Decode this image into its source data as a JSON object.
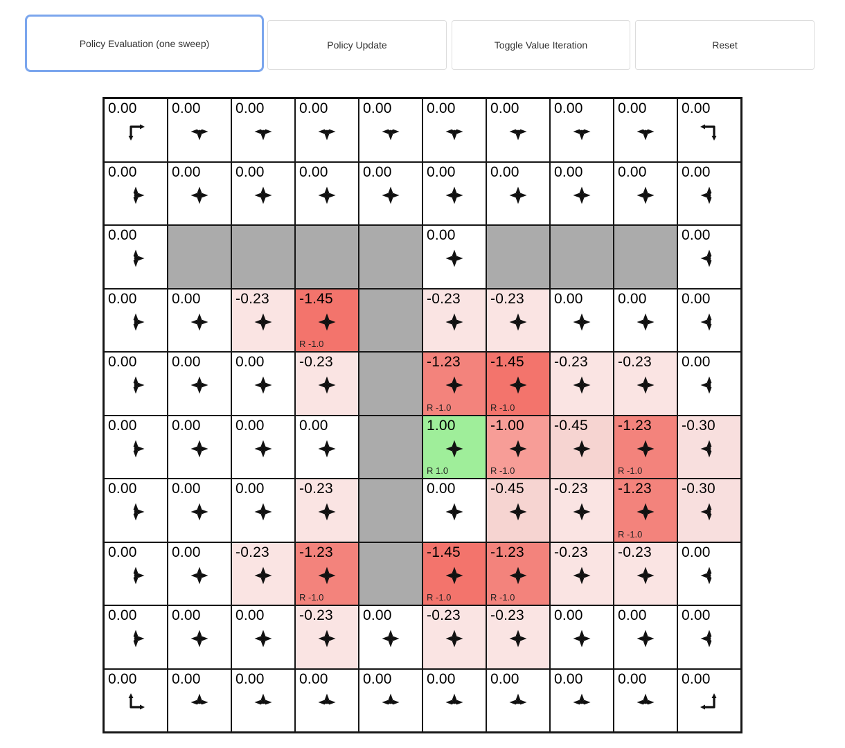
{
  "toolbar": {
    "buttons": [
      {
        "label": "Policy Evaluation (one sweep)",
        "active": true
      },
      {
        "label": "Policy Update",
        "active": false
      },
      {
        "label": "Toggle Value Iteration",
        "active": false
      },
      {
        "label": "Reset",
        "active": false
      }
    ],
    "active_border_color": "#7ba6ed"
  },
  "colors": {
    "cell_white": "#ffffff",
    "wall_gray": "#ababab",
    "green_positive": "#9fee9a",
    "red_strong": "#f3746c",
    "red_medium": "#f3837c",
    "red_light": "#f79d97",
    "pink_045": "#f6d4d1",
    "pink_030": "#f8dfde",
    "pink_023": "#fae4e3",
    "grid_line": "#161616",
    "arrow_black": "#111111"
  },
  "grid": {
    "rows": 10,
    "cols": 10,
    "cells": [
      [
        {
          "v": "0.00",
          "bg": "#ffffff",
          "g": "corner",
          "a": "dr"
        },
        {
          "v": "0.00",
          "bg": "#ffffff",
          "g": "star",
          "a": "ldr"
        },
        {
          "v": "0.00",
          "bg": "#ffffff",
          "g": "star",
          "a": "ldr"
        },
        {
          "v": "0.00",
          "bg": "#ffffff",
          "g": "star",
          "a": "ldr"
        },
        {
          "v": "0.00",
          "bg": "#ffffff",
          "g": "star",
          "a": "ldr"
        },
        {
          "v": "0.00",
          "bg": "#ffffff",
          "g": "star",
          "a": "ldr"
        },
        {
          "v": "0.00",
          "bg": "#ffffff",
          "g": "star",
          "a": "ldr"
        },
        {
          "v": "0.00",
          "bg": "#ffffff",
          "g": "star",
          "a": "ldr"
        },
        {
          "v": "0.00",
          "bg": "#ffffff",
          "g": "star",
          "a": "ldr"
        },
        {
          "v": "0.00",
          "bg": "#ffffff",
          "g": "corner",
          "a": "dl"
        }
      ],
      [
        {
          "v": "0.00",
          "bg": "#ffffff",
          "g": "star",
          "a": "udr"
        },
        {
          "v": "0.00",
          "bg": "#ffffff",
          "g": "star",
          "a": "udlr"
        },
        {
          "v": "0.00",
          "bg": "#ffffff",
          "g": "star",
          "a": "udlr"
        },
        {
          "v": "0.00",
          "bg": "#ffffff",
          "g": "star",
          "a": "udlr"
        },
        {
          "v": "0.00",
          "bg": "#ffffff",
          "g": "star",
          "a": "udlr"
        },
        {
          "v": "0.00",
          "bg": "#ffffff",
          "g": "star",
          "a": "udlr"
        },
        {
          "v": "0.00",
          "bg": "#ffffff",
          "g": "star",
          "a": "udlr"
        },
        {
          "v": "0.00",
          "bg": "#ffffff",
          "g": "star",
          "a": "udlr"
        },
        {
          "v": "0.00",
          "bg": "#ffffff",
          "g": "star",
          "a": "udlr"
        },
        {
          "v": "0.00",
          "bg": "#ffffff",
          "g": "star",
          "a": "udl"
        }
      ],
      [
        {
          "v": "0.00",
          "bg": "#ffffff",
          "g": "star",
          "a": "udr"
        },
        {
          "wall": true
        },
        {
          "wall": true
        },
        {
          "wall": true
        },
        {
          "wall": true
        },
        {
          "v": "0.00",
          "bg": "#ffffff",
          "g": "star",
          "a": "udlr"
        },
        {
          "wall": true
        },
        {
          "wall": true
        },
        {
          "wall": true
        },
        {
          "v": "0.00",
          "bg": "#ffffff",
          "g": "star",
          "a": "udl"
        }
      ],
      [
        {
          "v": "0.00",
          "bg": "#ffffff",
          "g": "star",
          "a": "udr"
        },
        {
          "v": "0.00",
          "bg": "#ffffff",
          "g": "star",
          "a": "udlr"
        },
        {
          "v": "-0.23",
          "bg": "#fae4e3",
          "g": "star",
          "a": "udlr"
        },
        {
          "v": "-1.45",
          "bg": "#f3746c",
          "g": "star",
          "a": "udlr",
          "r": "R -1.0"
        },
        {
          "wall": true
        },
        {
          "v": "-0.23",
          "bg": "#fae4e3",
          "g": "star",
          "a": "udlr"
        },
        {
          "v": "-0.23",
          "bg": "#fae4e3",
          "g": "star",
          "a": "udlr"
        },
        {
          "v": "0.00",
          "bg": "#ffffff",
          "g": "star",
          "a": "udlr"
        },
        {
          "v": "0.00",
          "bg": "#ffffff",
          "g": "star",
          "a": "udlr"
        },
        {
          "v": "0.00",
          "bg": "#ffffff",
          "g": "star",
          "a": "udl"
        }
      ],
      [
        {
          "v": "0.00",
          "bg": "#ffffff",
          "g": "star",
          "a": "udr"
        },
        {
          "v": "0.00",
          "bg": "#ffffff",
          "g": "star",
          "a": "udlr"
        },
        {
          "v": "0.00",
          "bg": "#ffffff",
          "g": "star",
          "a": "udlr"
        },
        {
          "v": "-0.23",
          "bg": "#fae4e3",
          "g": "star",
          "a": "udlr"
        },
        {
          "wall": true
        },
        {
          "v": "-1.23",
          "bg": "#f3837c",
          "g": "star",
          "a": "udlr",
          "r": "R -1.0"
        },
        {
          "v": "-1.45",
          "bg": "#f3746c",
          "g": "star",
          "a": "udlr",
          "r": "R -1.0"
        },
        {
          "v": "-0.23",
          "bg": "#fae4e3",
          "g": "star",
          "a": "udlr"
        },
        {
          "v": "-0.23",
          "bg": "#fae4e3",
          "g": "star",
          "a": "udlr"
        },
        {
          "v": "0.00",
          "bg": "#ffffff",
          "g": "star",
          "a": "udl"
        }
      ],
      [
        {
          "v": "0.00",
          "bg": "#ffffff",
          "g": "star",
          "a": "udr"
        },
        {
          "v": "0.00",
          "bg": "#ffffff",
          "g": "star",
          "a": "udlr"
        },
        {
          "v": "0.00",
          "bg": "#ffffff",
          "g": "star",
          "a": "udlr"
        },
        {
          "v": "0.00",
          "bg": "#ffffff",
          "g": "star",
          "a": "udlr"
        },
        {
          "wall": true
        },
        {
          "v": "1.00",
          "bg": "#9fee9a",
          "g": "star",
          "a": "udlr",
          "r": "R 1.0"
        },
        {
          "v": "-1.00",
          "bg": "#f79d97",
          "g": "star",
          "a": "udlr",
          "r": "R -1.0"
        },
        {
          "v": "-0.45",
          "bg": "#f6d4d1",
          "g": "star",
          "a": "udlr"
        },
        {
          "v": "-1.23",
          "bg": "#f3837c",
          "g": "star",
          "a": "udlr",
          "r": "R -1.0"
        },
        {
          "v": "-0.30",
          "bg": "#f8dfde",
          "g": "star",
          "a": "udl"
        }
      ],
      [
        {
          "v": "0.00",
          "bg": "#ffffff",
          "g": "star",
          "a": "udr"
        },
        {
          "v": "0.00",
          "bg": "#ffffff",
          "g": "star",
          "a": "udlr"
        },
        {
          "v": "0.00",
          "bg": "#ffffff",
          "g": "star",
          "a": "udlr"
        },
        {
          "v": "-0.23",
          "bg": "#fae4e3",
          "g": "star",
          "a": "udlr"
        },
        {
          "wall": true
        },
        {
          "v": "0.00",
          "bg": "#ffffff",
          "g": "star",
          "a": "udlr"
        },
        {
          "v": "-0.45",
          "bg": "#f6d4d1",
          "g": "star",
          "a": "udlr"
        },
        {
          "v": "-0.23",
          "bg": "#fae4e3",
          "g": "star",
          "a": "udlr"
        },
        {
          "v": "-1.23",
          "bg": "#f3837c",
          "g": "star",
          "a": "udlr",
          "r": "R -1.0"
        },
        {
          "v": "-0.30",
          "bg": "#f8dfde",
          "g": "star",
          "a": "udl"
        }
      ],
      [
        {
          "v": "0.00",
          "bg": "#ffffff",
          "g": "star",
          "a": "udr"
        },
        {
          "v": "0.00",
          "bg": "#ffffff",
          "g": "star",
          "a": "udlr"
        },
        {
          "v": "-0.23",
          "bg": "#fae4e3",
          "g": "star",
          "a": "udlr"
        },
        {
          "v": "-1.23",
          "bg": "#f3837c",
          "g": "star",
          "a": "udlr",
          "r": "R -1.0"
        },
        {
          "wall": true
        },
        {
          "v": "-1.45",
          "bg": "#f3746c",
          "g": "star",
          "a": "udlr",
          "r": "R -1.0"
        },
        {
          "v": "-1.23",
          "bg": "#f3837c",
          "g": "star",
          "a": "udlr",
          "r": "R -1.0"
        },
        {
          "v": "-0.23",
          "bg": "#fae4e3",
          "g": "star",
          "a": "udlr"
        },
        {
          "v": "-0.23",
          "bg": "#fae4e3",
          "g": "star",
          "a": "udlr"
        },
        {
          "v": "0.00",
          "bg": "#ffffff",
          "g": "star",
          "a": "udl"
        }
      ],
      [
        {
          "v": "0.00",
          "bg": "#ffffff",
          "g": "star",
          "a": "udr"
        },
        {
          "v": "0.00",
          "bg": "#ffffff",
          "g": "star",
          "a": "udlr"
        },
        {
          "v": "0.00",
          "bg": "#ffffff",
          "g": "star",
          "a": "udlr"
        },
        {
          "v": "-0.23",
          "bg": "#fae4e3",
          "g": "star",
          "a": "udlr"
        },
        {
          "v": "0.00",
          "bg": "#ffffff",
          "g": "star",
          "a": "udlr"
        },
        {
          "v": "-0.23",
          "bg": "#fae4e3",
          "g": "star",
          "a": "udlr"
        },
        {
          "v": "-0.23",
          "bg": "#fae4e3",
          "g": "star",
          "a": "udlr"
        },
        {
          "v": "0.00",
          "bg": "#ffffff",
          "g": "star",
          "a": "udlr"
        },
        {
          "v": "0.00",
          "bg": "#ffffff",
          "g": "star",
          "a": "udlr"
        },
        {
          "v": "0.00",
          "bg": "#ffffff",
          "g": "star",
          "a": "udl"
        }
      ],
      [
        {
          "v": "0.00",
          "bg": "#ffffff",
          "g": "corner",
          "a": "ur"
        },
        {
          "v": "0.00",
          "bg": "#ffffff",
          "g": "star",
          "a": "ulr"
        },
        {
          "v": "0.00",
          "bg": "#ffffff",
          "g": "star",
          "a": "ulr"
        },
        {
          "v": "0.00",
          "bg": "#ffffff",
          "g": "star",
          "a": "ulr"
        },
        {
          "v": "0.00",
          "bg": "#ffffff",
          "g": "star",
          "a": "ulr"
        },
        {
          "v": "0.00",
          "bg": "#ffffff",
          "g": "star",
          "a": "ulr"
        },
        {
          "v": "0.00",
          "bg": "#ffffff",
          "g": "star",
          "a": "ulr"
        },
        {
          "v": "0.00",
          "bg": "#ffffff",
          "g": "star",
          "a": "ulr"
        },
        {
          "v": "0.00",
          "bg": "#ffffff",
          "g": "star",
          "a": "ulr"
        },
        {
          "v": "0.00",
          "bg": "#ffffff",
          "g": "corner",
          "a": "ul"
        }
      ]
    ]
  }
}
